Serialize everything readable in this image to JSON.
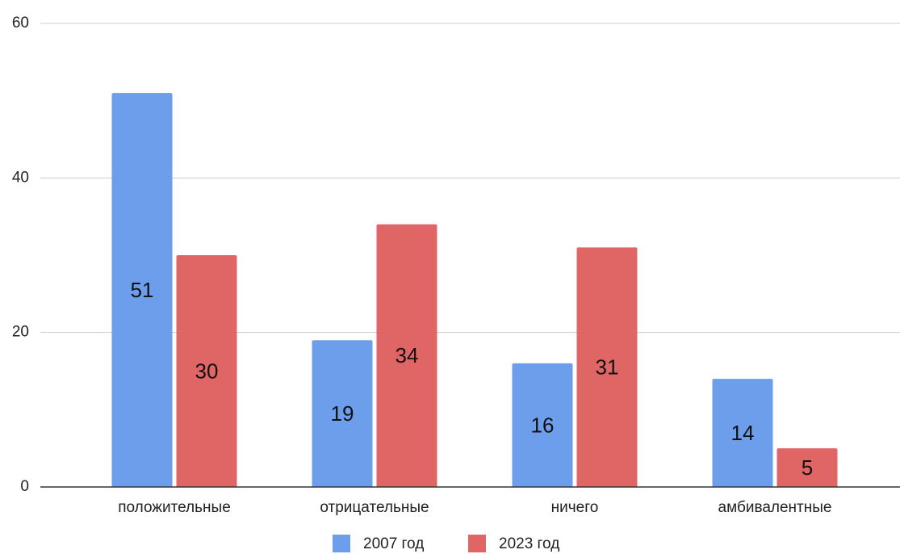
{
  "chart_data": {
    "type": "bar",
    "categories": [
      "положительные",
      "отрицательные",
      "ничего",
      "амбивалентные"
    ],
    "series": [
      {
        "name": "2007 год",
        "color": "#6d9eeb",
        "values": [
          51,
          19,
          16,
          14
        ]
      },
      {
        "name": "2023 год",
        "color": "#e06666",
        "values": [
          30,
          34,
          31,
          5
        ]
      }
    ],
    "ylim": [
      0,
      60
    ],
    "yticks": [
      0,
      20,
      40,
      60
    ],
    "grid": true,
    "legend": "bottom"
  }
}
